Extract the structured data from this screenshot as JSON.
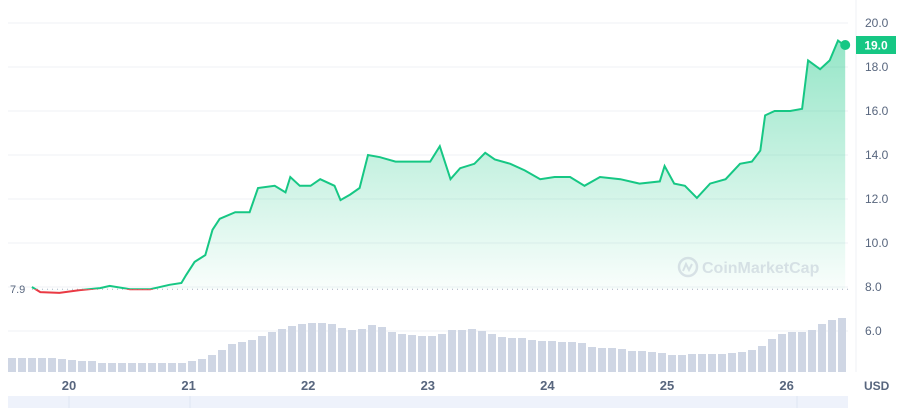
{
  "chart_data": {
    "type": "line",
    "title": "",
    "xlabel": "",
    "ylabel": "",
    "unit_label": "USD",
    "x_ticks": [
      "20",
      "21",
      "22",
      "23",
      "24",
      "25",
      "26"
    ],
    "y_ticks": [
      "20.0",
      "18.0",
      "16.0",
      "14.0",
      "12.0",
      "10.0",
      "8.0",
      "6.0"
    ],
    "ylim": [
      3.9,
      20.7
    ],
    "xlim": [
      19.62,
      26.55
    ],
    "grid": true,
    "open_price": 7.9,
    "open_label": "7.9",
    "current_price": 19.0,
    "current_label": "19.0",
    "colors": {
      "up": "#16c784",
      "down": "#ea3943",
      "volume": "#cfd6e4",
      "grid": "#eff2f5"
    },
    "watermark": "CoinMarketCap",
    "price_series": {
      "x": [
        19.69,
        19.76,
        19.92,
        20.09,
        20.26,
        20.34,
        20.51,
        20.68,
        20.84,
        20.94,
        20.98,
        21.05,
        21.14,
        21.2,
        21.26,
        21.39,
        21.51,
        21.58,
        21.72,
        21.81,
        21.85,
        21.93,
        22.02,
        22.1,
        22.22,
        22.27,
        22.35,
        22.43,
        22.5,
        22.6,
        22.73,
        22.89,
        23.02,
        23.1,
        23.19,
        23.27,
        23.39,
        23.48,
        23.56,
        23.69,
        23.81,
        23.94,
        24.06,
        24.19,
        24.31,
        24.44,
        24.61,
        24.77,
        24.94,
        24.98,
        25.06,
        25.15,
        25.25,
        25.36,
        25.49,
        25.61,
        25.71,
        25.78,
        25.82,
        25.9,
        26.03,
        26.13,
        26.18,
        26.28,
        26.36,
        26.43,
        26.49
      ],
      "y": [
        8.0,
        7.77,
        7.73,
        7.86,
        7.95,
        8.05,
        7.9,
        7.9,
        8.1,
        8.18,
        8.55,
        9.14,
        9.45,
        10.6,
        11.1,
        11.4,
        11.4,
        12.5,
        12.6,
        12.3,
        13.0,
        12.6,
        12.6,
        12.9,
        12.6,
        11.95,
        12.2,
        12.5,
        14.0,
        13.9,
        13.7,
        13.7,
        13.7,
        14.4,
        12.9,
        13.4,
        13.6,
        14.1,
        13.8,
        13.6,
        13.3,
        12.9,
        13.0,
        13.0,
        12.6,
        13.0,
        12.9,
        12.7,
        12.8,
        13.5,
        12.7,
        12.6,
        12.05,
        12.7,
        12.9,
        13.6,
        13.7,
        14.2,
        15.8,
        16.0,
        16.0,
        16.1,
        18.3,
        17.9,
        18.3,
        19.2,
        18.95
      ]
    },
    "volume_relative": [
      14,
      14,
      14,
      14,
      14,
      13,
      12,
      11,
      11,
      9,
      9,
      9,
      9,
      9,
      9,
      9,
      9,
      9,
      11,
      13,
      17,
      22,
      28,
      30,
      32,
      36,
      40,
      43,
      46,
      48,
      49,
      49,
      48,
      44,
      42,
      43,
      47,
      45,
      40,
      38,
      37,
      36,
      36,
      38,
      42,
      42,
      43,
      41,
      38,
      35,
      34,
      34,
      32,
      31,
      31,
      30,
      30,
      29,
      25,
      24,
      24,
      23,
      21,
      21,
      20,
      19,
      17,
      17,
      18,
      18,
      18,
      18,
      19,
      20,
      22,
      26,
      33,
      38,
      40,
      40,
      42,
      48,
      52,
      54
    ]
  }
}
